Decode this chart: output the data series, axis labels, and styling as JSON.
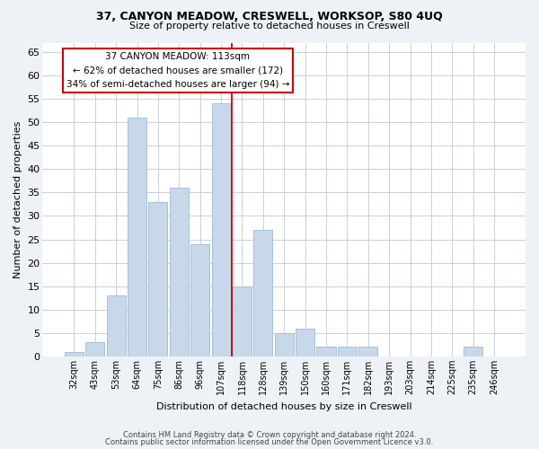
{
  "title1": "37, CANYON MEADOW, CRESWELL, WORKSOP, S80 4UQ",
  "title2": "Size of property relative to detached houses in Creswell",
  "xlabel": "Distribution of detached houses by size in Creswell",
  "ylabel": "Number of detached properties",
  "bar_labels": [
    "32sqm",
    "43sqm",
    "53sqm",
    "64sqm",
    "75sqm",
    "86sqm",
    "96sqm",
    "107sqm",
    "118sqm",
    "128sqm",
    "139sqm",
    "150sqm",
    "160sqm",
    "171sqm",
    "182sqm",
    "193sqm",
    "203sqm",
    "214sqm",
    "225sqm",
    "235sqm",
    "246sqm"
  ],
  "bar_values": [
    1,
    3,
    13,
    51,
    33,
    36,
    24,
    54,
    15,
    27,
    5,
    6,
    2,
    2,
    2,
    0,
    0,
    0,
    0,
    2,
    0
  ],
  "vline_x": 7.5,
  "bar_color": "#c8d8eb",
  "bar_edge_color": "#a8c0d8",
  "vline_color": "#cc0000",
  "annotation_title": "37 CANYON MEADOW: 113sqm",
  "annotation_line1": "← 62% of detached houses are smaller (172)",
  "annotation_line2": "34% of semi-detached houses are larger (94) →",
  "annotation_box_facecolor": "#ffffff",
  "annotation_box_edgecolor": "#cc0000",
  "ylim": [
    0,
    67
  ],
  "yticks": [
    0,
    5,
    10,
    15,
    20,
    25,
    30,
    35,
    40,
    45,
    50,
    55,
    60,
    65
  ],
  "footer1": "Contains HM Land Registry data © Crown copyright and database right 2024.",
  "footer2": "Contains public sector information licensed under the Open Government Licence v3.0.",
  "bg_color": "#eef2f7",
  "plot_bg_color": "#ffffff",
  "grid_color": "#c8d0dc"
}
